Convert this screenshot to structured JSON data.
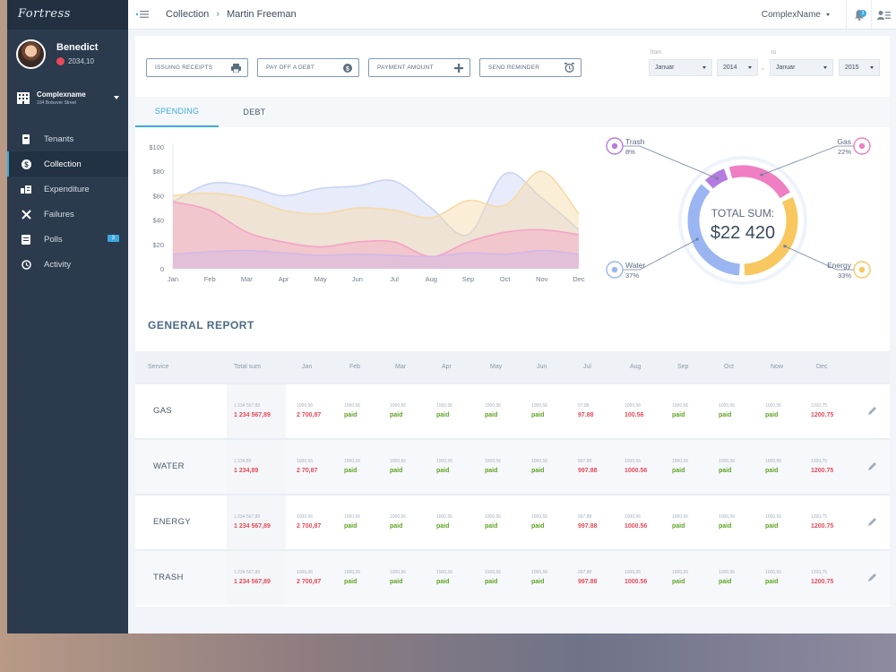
{
  "sidebar": {
    "logo": "Fortress",
    "user": {
      "name": "Benedict",
      "balance": "2034,10"
    },
    "complex": {
      "name": "Complexname",
      "address": "104 Bolsover Street"
    },
    "nav": [
      {
        "label": "Tenants",
        "icon": "tenants-icon"
      },
      {
        "label": "Collection",
        "icon": "dollar-icon",
        "active": true
      },
      {
        "label": "Expenditure",
        "icon": "expenditure-icon"
      },
      {
        "label": "Failures",
        "icon": "tools-icon"
      },
      {
        "label": "Polls",
        "icon": "polls-icon",
        "badge": "3"
      },
      {
        "label": "Activity",
        "icon": "history-icon"
      }
    ]
  },
  "header": {
    "breadcrumb": [
      "Collection",
      "Martin Freeman"
    ],
    "complex_select": "ComplexName",
    "notification_count": "3"
  },
  "actions": [
    {
      "label": "ISSUING RECEIPTS",
      "icon": "printer-icon"
    },
    {
      "label": "PAY OFF A DEBT",
      "icon": "dollar-circle-icon"
    },
    {
      "label": "PAYMENT AMOUNT",
      "icon": "plus-icon"
    },
    {
      "label": "SEND REMINDER",
      "icon": "alarm-clock-icon"
    }
  ],
  "date_range": {
    "from_label": "from",
    "to_label": "to",
    "from_month": "Januar",
    "from_year": "2014",
    "to_month": "Januar",
    "to_year": "2015"
  },
  "tabs": [
    {
      "label": "SPENDING",
      "active": true
    },
    {
      "label": "DEBT",
      "active": false
    }
  ],
  "chart_data": [
    {
      "type": "area",
      "categories": [
        "Jan",
        "Feb",
        "Mar",
        "Apr",
        "May",
        "Jun",
        "Jul",
        "Aug",
        "Sep",
        "Oct",
        "Nov",
        "Dec"
      ],
      "y_tick_labels": [
        "$100",
        "$80",
        "$60",
        "$40",
        "$20",
        "0"
      ],
      "ylim": [
        0,
        100
      ],
      "series": [
        {
          "color": "#c9d3f4",
          "values": [
            55,
            70,
            68,
            60,
            66,
            68,
            72,
            50,
            28,
            78,
            58,
            32
          ]
        },
        {
          "color": "#f7d9a6",
          "values": [
            60,
            62,
            58,
            48,
            45,
            50,
            48,
            42,
            56,
            52,
            80,
            45
          ]
        },
        {
          "color": "#f4a3c6",
          "values": [
            55,
            48,
            30,
            22,
            18,
            22,
            22,
            10,
            22,
            30,
            32,
            28
          ]
        },
        {
          "color": "#d3b7e8",
          "values": [
            12,
            14,
            15,
            13,
            11,
            12,
            11,
            10,
            13,
            12,
            15,
            12
          ]
        }
      ]
    },
    {
      "type": "pie",
      "title": "TOTAL SUM:",
      "total": "$22 420",
      "slices": [
        {
          "label": "Trash",
          "percent": "8%",
          "value": 8,
          "color": "#b57be0",
          "icon": "trash-icon"
        },
        {
          "label": "Gas",
          "percent": "22%",
          "value": 22,
          "color": "#ef7ec2",
          "icon": "flame-icon"
        },
        {
          "label": "Energy",
          "percent": "33%",
          "value": 33,
          "color": "#f8c760",
          "icon": "bolt-icon"
        },
        {
          "label": "Water",
          "percent": "37%",
          "value": 37,
          "color": "#9ab5f2",
          "icon": "drop-icon"
        }
      ]
    }
  ],
  "report": {
    "title": "GENERAL REPORT",
    "columns": [
      "Service",
      "Total sum",
      "Jan",
      "Feb",
      "Mar",
      "Apr",
      "May",
      "Jun",
      "Jul",
      "Aug",
      "Sep",
      "Oct",
      "Now",
      "Dec"
    ],
    "rows": [
      {
        "service": "GAS",
        "total_top": "1 234 567,89",
        "total": "1 234 567,89",
        "months": [
          {
            "top": "1000,56",
            "val": "2 700,87",
            "status": "red"
          },
          {
            "top": "1000,56",
            "val": "paid",
            "status": "green"
          },
          {
            "top": "1000,56",
            "val": "paid",
            "status": "green"
          },
          {
            "top": "1000,56",
            "val": "paid",
            "status": "green"
          },
          {
            "top": "1000,56",
            "val": "paid",
            "status": "green"
          },
          {
            "top": "1000,56",
            "val": "paid",
            "status": "green"
          },
          {
            "top": "97,88",
            "val": "97.88",
            "status": "red"
          },
          {
            "top": "1000,56",
            "val": "100.56",
            "status": "red"
          },
          {
            "top": "1000,56",
            "val": "paid",
            "status": "green"
          },
          {
            "top": "1000,56",
            "val": "paid",
            "status": "green"
          },
          {
            "top": "1000,56",
            "val": "paid",
            "status": "green"
          },
          {
            "top": "1200,75",
            "val": "1200.75",
            "status": "red"
          }
        ]
      },
      {
        "service": "WATER",
        "total_top": "1 234,89",
        "total": "1 234,89",
        "months": [
          {
            "top": "1000,56",
            "val": "2 70,87",
            "status": "red"
          },
          {
            "top": "1000,56",
            "val": "paid",
            "status": "green"
          },
          {
            "top": "1000,56",
            "val": "paid",
            "status": "green"
          },
          {
            "top": "1000,56",
            "val": "paid",
            "status": "green"
          },
          {
            "top": "1000,56",
            "val": "paid",
            "status": "green"
          },
          {
            "top": "1000,56",
            "val": "paid",
            "status": "green"
          },
          {
            "top": "997,88",
            "val": "997.88",
            "status": "red"
          },
          {
            "top": "1000,56",
            "val": "1000.56",
            "status": "red"
          },
          {
            "top": "1000,56",
            "val": "paid",
            "status": "green"
          },
          {
            "top": "1000,56",
            "val": "paid",
            "status": "green"
          },
          {
            "top": "1000,56",
            "val": "paid",
            "status": "green"
          },
          {
            "top": "1200,75",
            "val": "1200.75",
            "status": "red"
          }
        ]
      },
      {
        "service": "ENERGY",
        "total_top": "1 234 567,89",
        "total": "1 234 567,89",
        "months": [
          {
            "top": "1000,56",
            "val": "2 700,87",
            "status": "red"
          },
          {
            "top": "1000,56",
            "val": "paid",
            "status": "green"
          },
          {
            "top": "1000,56",
            "val": "paid",
            "status": "green"
          },
          {
            "top": "1000,56",
            "val": "paid",
            "status": "green"
          },
          {
            "top": "1000,56",
            "val": "paid",
            "status": "green"
          },
          {
            "top": "1000,56",
            "val": "paid",
            "status": "green"
          },
          {
            "top": "997,88",
            "val": "997.88",
            "status": "red"
          },
          {
            "top": "1000,56",
            "val": "1000.56",
            "status": "red"
          },
          {
            "top": "1000,56",
            "val": "paid",
            "status": "green"
          },
          {
            "top": "1000,56",
            "val": "paid",
            "status": "green"
          },
          {
            "top": "1000,56",
            "val": "paid",
            "status": "green"
          },
          {
            "top": "1200,75",
            "val": "1200.75",
            "status": "red"
          }
        ]
      },
      {
        "service": "TRASH",
        "total_top": "1 234 567,89",
        "total": "1 234 567,89",
        "months": [
          {
            "top": "1000,56",
            "val": "2 700,87",
            "status": "red"
          },
          {
            "top": "1000,56",
            "val": "paid",
            "status": "green"
          },
          {
            "top": "1000,56",
            "val": "paid",
            "status": "green"
          },
          {
            "top": "1000,56",
            "val": "paid",
            "status": "green"
          },
          {
            "top": "1000,56",
            "val": "paid",
            "status": "green"
          },
          {
            "top": "1000,56",
            "val": "paid",
            "status": "green"
          },
          {
            "top": "997,88",
            "val": "997.88",
            "status": "red"
          },
          {
            "top": "1000,56",
            "val": "1000.56",
            "status": "red"
          },
          {
            "top": "1000,56",
            "val": "paid",
            "status": "green"
          },
          {
            "top": "1000,56",
            "val": "paid",
            "status": "green"
          },
          {
            "top": "1000,56",
            "val": "paid",
            "status": "green"
          },
          {
            "top": "1200,75",
            "val": "1200.75",
            "status": "red"
          }
        ]
      }
    ]
  }
}
